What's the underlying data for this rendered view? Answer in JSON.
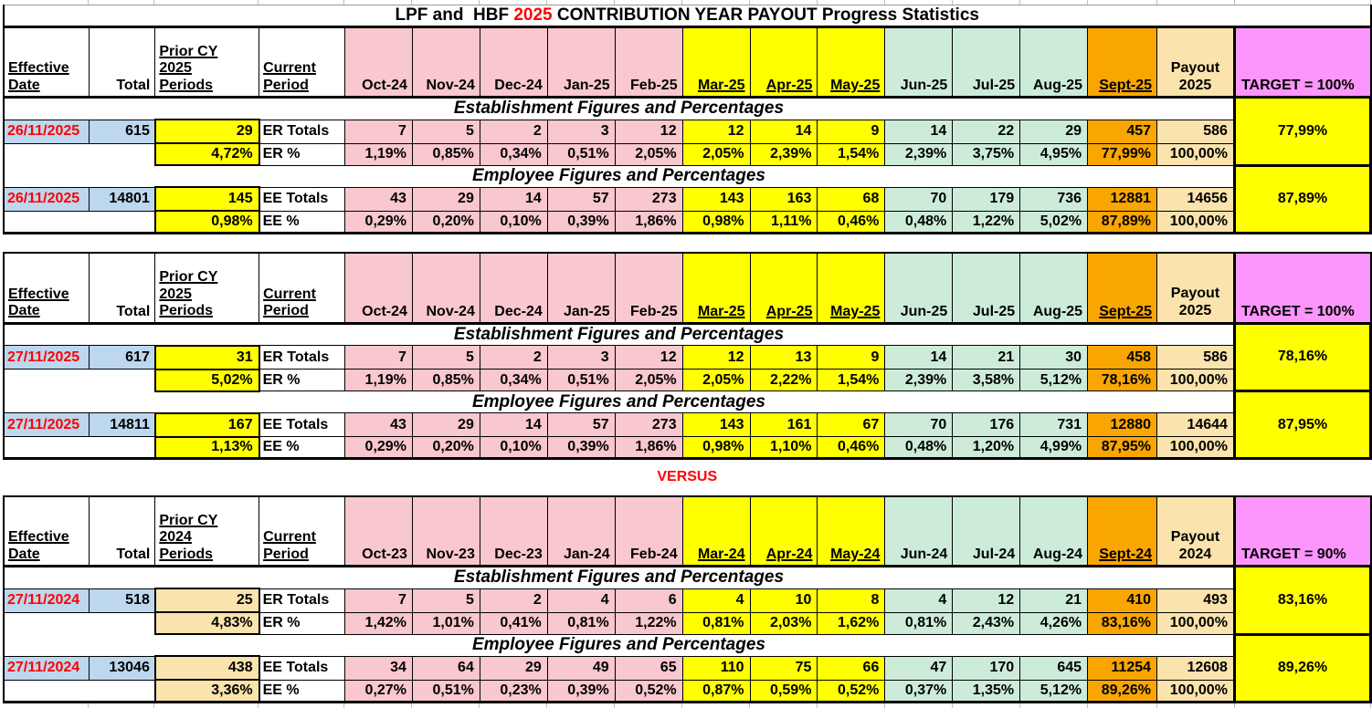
{
  "title": {
    "part1": "LPF and  HBF ",
    "year": "2025",
    "part2": " CONTRIBUTION YEAR PAYOUT Progress Statistics"
  },
  "versus_label": "VERSUS",
  "colors": {
    "month_early": "#F9C7CE",
    "month_mid": "#FFFF00",
    "month_late": "#CCECD9",
    "month_sept": "#F9A602",
    "payout": "#FAE3AC",
    "target_header": "#FC96FC",
    "totals": "#BDD7EE",
    "accent_red": "#FF0000"
  },
  "blocks": [
    {
      "prior_style": "yellow",
      "col_headers": {
        "effective": [
          "Effective",
          "Date"
        ],
        "total": "Total",
        "prior": [
          "Prior CY",
          "2025",
          "Periods"
        ],
        "current": [
          "Current",
          "Period"
        ],
        "months": [
          "Oct-24",
          "Nov-24",
          "Dec-24",
          "Jan-25",
          "Feb-25",
          "Mar-25",
          "Apr-25",
          "May-25",
          "Jun-25",
          "Jul-25",
          "Aug-25",
          "Sept-25"
        ],
        "payout": [
          "Payout",
          "2025"
        ],
        "target": "TARGET = 100%"
      },
      "sections": [
        {
          "heading": "Establishment Figures and Percentages",
          "target_value": "77,99%",
          "rows": [
            {
              "date": "26/11/2025",
              "total": "615",
              "prior": "29",
              "label": "ER Totals",
              "months": [
                "7",
                "5",
                "2",
                "3",
                "12",
                "12",
                "14",
                "9",
                "14",
                "22",
                "29",
                "457"
              ],
              "payout": "586"
            },
            {
              "date": "",
              "total": "",
              "prior": "4,72%",
              "label": "ER %",
              "months": [
                "1,19%",
                "0,85%",
                "0,34%",
                "0,51%",
                "2,05%",
                "2,05%",
                "2,39%",
                "1,54%",
                "2,39%",
                "3,75%",
                "4,95%",
                "77,99%"
              ],
              "payout": "100,00%"
            }
          ]
        },
        {
          "heading": "Employee Figures and Percentages",
          "target_value": "87,89%",
          "rows": [
            {
              "date": "26/11/2025",
              "total": "14801",
              "prior": "145",
              "label": "EE Totals",
              "months": [
                "43",
                "29",
                "14",
                "57",
                "273",
                "143",
                "163",
                "68",
                "70",
                "179",
                "736",
                "12881"
              ],
              "payout": "14656"
            },
            {
              "date": "",
              "total": "",
              "prior": "0,98%",
              "label": "EE %",
              "months": [
                "0,29%",
                "0,20%",
                "0,10%",
                "0,39%",
                "1,86%",
                "0,98%",
                "1,11%",
                "0,46%",
                "0,48%",
                "1,22%",
                "5,02%",
                "87,89%"
              ],
              "payout": "100,00%"
            }
          ]
        }
      ]
    },
    {
      "prior_style": "yellow",
      "col_headers": {
        "effective": [
          "Effective",
          "Date"
        ],
        "total": "Total",
        "prior": [
          "Prior CY",
          "2025",
          "Periods"
        ],
        "current": [
          "Current",
          "Period"
        ],
        "months": [
          "Oct-24",
          "Nov-24",
          "Dec-24",
          "Jan-25",
          "Feb-25",
          "Mar-25",
          "Apr-25",
          "May-25",
          "Jun-25",
          "Jul-25",
          "Aug-25",
          "Sept-25"
        ],
        "payout": [
          "Payout",
          "2025"
        ],
        "target": "TARGET = 100%"
      },
      "sections": [
        {
          "heading": "Establishment Figures and Percentages",
          "target_value": "78,16%",
          "rows": [
            {
              "date": "27/11/2025",
              "total": "617",
              "prior": "31",
              "label": "ER Totals",
              "months": [
                "7",
                "5",
                "2",
                "3",
                "12",
                "12",
                "13",
                "9",
                "14",
                "21",
                "30",
                "458"
              ],
              "payout": "586"
            },
            {
              "date": "",
              "total": "",
              "prior": "5,02%",
              "label": "ER %",
              "months": [
                "1,19%",
                "0,85%",
                "0,34%",
                "0,51%",
                "2,05%",
                "2,05%",
                "2,22%",
                "1,54%",
                "2,39%",
                "3,58%",
                "5,12%",
                "78,16%"
              ],
              "payout": "100,00%"
            }
          ]
        },
        {
          "heading": "Employee Figures and Percentages",
          "target_value": "87,95%",
          "rows": [
            {
              "date": "27/11/2025",
              "total": "14811",
              "prior": "167",
              "label": "EE Totals",
              "months": [
                "43",
                "29",
                "14",
                "57",
                "273",
                "143",
                "161",
                "67",
                "70",
                "176",
                "731",
                "12880"
              ],
              "payout": "14644"
            },
            {
              "date": "",
              "total": "",
              "prior": "1,13%",
              "label": "EE %",
              "months": [
                "0,29%",
                "0,20%",
                "0,10%",
                "0,39%",
                "1,86%",
                "0,98%",
                "1,10%",
                "0,46%",
                "0,48%",
                "1,20%",
                "4,99%",
                "87,95%"
              ],
              "payout": "100,00%"
            }
          ]
        }
      ]
    },
    {
      "prior_style": "tan",
      "col_headers": {
        "effective": [
          "Effective",
          "Date"
        ],
        "total": "Total",
        "prior": [
          "Prior CY",
          "2024",
          "Periods"
        ],
        "current": [
          "Current",
          "Period"
        ],
        "months": [
          "Oct-23",
          "Nov-23",
          "Dec-23",
          "Jan-24",
          "Feb-24",
          "Mar-24",
          "Apr-24",
          "May-24",
          "Jun-24",
          "Jul-24",
          "Aug-24",
          "Sept-24"
        ],
        "payout": [
          "Payout",
          "2024"
        ],
        "target": "TARGET = 90%"
      },
      "sections": [
        {
          "heading": "Establishment Figures and Percentages",
          "target_value": "83,16%",
          "rows": [
            {
              "date": "27/11/2024",
              "total": "518",
              "prior": "25",
              "label": "ER Totals",
              "months": [
                "7",
                "5",
                "2",
                "4",
                "6",
                "4",
                "10",
                "8",
                "4",
                "12",
                "21",
                "410"
              ],
              "payout": "493"
            },
            {
              "date": "",
              "total": "",
              "prior": "4,83%",
              "label": "ER %",
              "months": [
                "1,42%",
                "1,01%",
                "0,41%",
                "0,81%",
                "1,22%",
                "0,81%",
                "2,03%",
                "1,62%",
                "0,81%",
                "2,43%",
                "4,26%",
                "83,16%"
              ],
              "payout": "100,00%"
            }
          ]
        },
        {
          "heading": "Employee Figures and Percentages",
          "target_value": "89,26%",
          "rows": [
            {
              "date": "27/11/2024",
              "total": "13046",
              "prior": "438",
              "label": "EE Totals",
              "months": [
                "34",
                "64",
                "29",
                "49",
                "65",
                "110",
                "75",
                "66",
                "47",
                "170",
                "645",
                "11254"
              ],
              "payout": "12608"
            },
            {
              "date": "",
              "total": "",
              "prior": "3,36%",
              "label": "EE %",
              "months": [
                "0,27%",
                "0,51%",
                "0,23%",
                "0,39%",
                "0,52%",
                "0,87%",
                "0,59%",
                "0,52%",
                "0,37%",
                "1,35%",
                "5,12%",
                "89,26%"
              ],
              "payout": "100,00%"
            }
          ]
        }
      ]
    }
  ]
}
